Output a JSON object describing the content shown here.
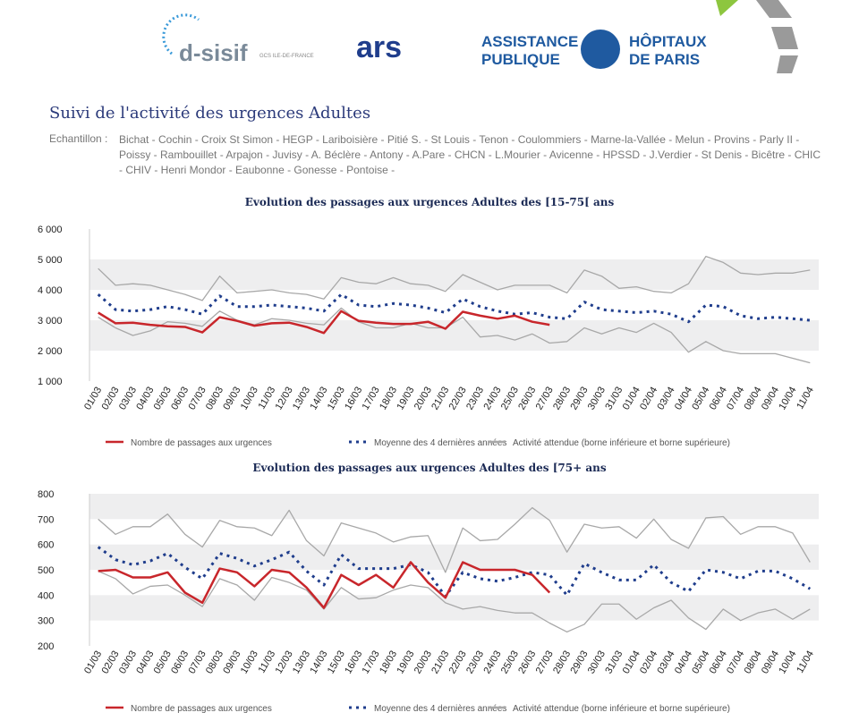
{
  "header": {
    "logo1": "d-sisif",
    "logo1_sub": "GCS ILE-DE-FRANCE",
    "logo2": "ars",
    "logo3_line1": "ASSISTANCE",
    "logo3_line2": "PUBLIQUE",
    "logo3_line3": "HÔPITAUX",
    "logo3_line4": "DE PARIS",
    "title": "Suivi de l'activité des urgences Adultes",
    "sample_label": "Echantillon :",
    "sample": "Bichat - Cochin - Croix St Simon - HEGP - Lariboisière - Pitié S. - St Louis - Tenon - Coulommiers - Marne-la-Vallée - Melun - Provins - Parly II - Poissy - Rambouillet - Arpajon - Juvisy - A. Béclère - Antony - A.Pare - CHCN - L.Mourier - Avicenne - HPSSD - J.Verdier - St Denis - Bicêtre - CHIC - CHIV - Henri Mondor - Eaubonne - Gonesse - Pontoise -"
  },
  "chart_data": [
    {
      "type": "line",
      "title": "Evolution des passages aux urgences Adultes des [15-75[ ans",
      "categories": [
        "01/03",
        "02/03",
        "03/03",
        "04/03",
        "05/03",
        "06/03",
        "07/03",
        "08/03",
        "09/03",
        "10/03",
        "11/03",
        "12/03",
        "13/03",
        "14/03",
        "15/03",
        "16/03",
        "17/03",
        "18/03",
        "19/03",
        "20/03",
        "21/03",
        "22/03",
        "23/03",
        "24/03",
        "25/03",
        "26/03",
        "27/03",
        "28/03",
        "29/03",
        "30/03",
        "31/03",
        "01/04",
        "02/04",
        "03/04",
        "04/04",
        "05/04",
        "06/04",
        "07/04",
        "08/04",
        "09/04",
        "10/04",
        "11/04"
      ],
      "series": [
        {
          "name": "Nombre de passages aux urgences",
          "color": "#c8262b",
          "style": "solid",
          "values": [
            3250,
            2900,
            2920,
            2850,
            2800,
            2780,
            2600,
            3100,
            2980,
            2820,
            2900,
            2920,
            2780,
            2580,
            3300,
            2980,
            2920,
            2880,
            2880,
            2950,
            2720,
            3280,
            3150,
            3050,
            3150,
            2950,
            2850,
            null,
            null,
            null,
            null,
            null,
            null,
            null,
            null,
            null,
            null,
            null,
            null,
            null,
            null,
            null
          ]
        },
        {
          "name": "Moyenne des 4 dernières années",
          "color": "#1f3d8c",
          "style": "dotted",
          "values": [
            3850,
            3350,
            3300,
            3350,
            3450,
            3350,
            3200,
            3800,
            3450,
            3450,
            3500,
            3450,
            3400,
            3300,
            3850,
            3500,
            3450,
            3550,
            3500,
            3400,
            3250,
            3700,
            3450,
            3300,
            3200,
            3250,
            3100,
            3050,
            3600,
            3350,
            3300,
            3250,
            3300,
            3200,
            2950,
            3500,
            3450,
            3150,
            3050,
            3100,
            3050,
            3000
          ]
        }
      ],
      "band": {
        "name": "Activité attendue (borne inférieure et borne supérieure)",
        "color": "#a8a8a8",
        "upper": [
          4700,
          4150,
          4200,
          4150,
          4000,
          3850,
          3650,
          4450,
          3900,
          3950,
          4000,
          3900,
          3850,
          3700,
          4400,
          4250,
          4200,
          4400,
          4200,
          4150,
          3950,
          4500,
          4250,
          4000,
          4150,
          4150,
          4150,
          3900,
          4650,
          4450,
          4050,
          4100,
          3950,
          3900,
          4200,
          5100,
          4900,
          4550,
          4500,
          4550,
          4550,
          4650
        ],
        "lower": [
          3100,
          2750,
          2500,
          2650,
          2950,
          2900,
          2800,
          3300,
          3000,
          2850,
          3050,
          3000,
          2900,
          2850,
          3400,
          2950,
          2750,
          2750,
          2900,
          2750,
          2750,
          3100,
          2450,
          2500,
          2350,
          2550,
          2250,
          2300,
          2750,
          2550,
          2750,
          2600,
          2900,
          2600,
          1950,
          2300,
          2000,
          1900,
          1900,
          1900,
          1750,
          1600
        ]
      },
      "ylim": [
        1000,
        6000
      ],
      "yticks": [
        {
          "value": 1000,
          "label": "1 000"
        },
        {
          "value": 2000,
          "label": "2 000"
        },
        {
          "value": 3000,
          "label": "3 000"
        },
        {
          "value": 4000,
          "label": "4 000"
        },
        {
          "value": 5000,
          "label": "5 000"
        },
        {
          "value": 6000,
          "label": "6 000"
        }
      ],
      "grid": "bands"
    },
    {
      "type": "line",
      "title": "Evolution des passages aux urgences Adultes des [75+ ans",
      "categories": [
        "01/03",
        "02/03",
        "03/03",
        "04/03",
        "05/03",
        "06/03",
        "07/03",
        "08/03",
        "09/03",
        "10/03",
        "11/03",
        "12/03",
        "13/03",
        "14/03",
        "15/03",
        "16/03",
        "17/03",
        "18/03",
        "19/03",
        "20/03",
        "21/03",
        "22/03",
        "23/03",
        "24/03",
        "25/03",
        "26/03",
        "27/03",
        "28/03",
        "29/03",
        "30/03",
        "31/03",
        "01/04",
        "02/04",
        "03/04",
        "04/04",
        "05/04",
        "06/04",
        "07/04",
        "08/04",
        "09/04",
        "10/04",
        "11/04"
      ],
      "series": [
        {
          "name": "Nombre de passages aux urgences",
          "color": "#c8262b",
          "style": "solid",
          "values": [
            495,
            500,
            470,
            470,
            490,
            410,
            370,
            505,
            490,
            435,
            500,
            490,
            430,
            350,
            480,
            440,
            480,
            430,
            530,
            450,
            390,
            530,
            500,
            500,
            500,
            480,
            410,
            null,
            null,
            null,
            null,
            null,
            null,
            null,
            null,
            null,
            null,
            null,
            null,
            null,
            null,
            null
          ]
        },
        {
          "name": "Moyenne des 4 dernières années",
          "color": "#1f3d8c",
          "style": "dotted",
          "values": [
            590,
            540,
            520,
            535,
            565,
            510,
            465,
            565,
            545,
            515,
            540,
            570,
            495,
            440,
            560,
            505,
            505,
            505,
            520,
            490,
            395,
            490,
            465,
            455,
            470,
            490,
            480,
            400,
            525,
            490,
            460,
            460,
            520,
            450,
            415,
            500,
            490,
            465,
            495,
            495,
            465,
            425
          ]
        }
      ],
      "band": {
        "name": "Activité attendue (borne inférieure et borne supérieure)",
        "color": "#a8a8a8",
        "upper": [
          700,
          640,
          670,
          670,
          720,
          640,
          590,
          695,
          670,
          665,
          635,
          735,
          615,
          555,
          685,
          665,
          645,
          610,
          630,
          635,
          490,
          665,
          615,
          620,
          680,
          745,
          695,
          570,
          680,
          665,
          670,
          625,
          700,
          620,
          585,
          705,
          710,
          640,
          670,
          670,
          645,
          530
        ],
        "lower": [
          495,
          465,
          405,
          435,
          440,
          400,
          355,
          465,
          440,
          380,
          470,
          450,
          420,
          345,
          430,
          385,
          390,
          420,
          440,
          430,
          370,
          345,
          355,
          340,
          330,
          330,
          290,
          255,
          285,
          365,
          365,
          305,
          350,
          380,
          310,
          265,
          345,
          300,
          330,
          345,
          305,
          345
        ]
      },
      "ylim": [
        200,
        800
      ],
      "yticks": [
        200,
        300,
        400,
        500,
        600,
        700,
        800
      ],
      "grid": "bands"
    }
  ]
}
